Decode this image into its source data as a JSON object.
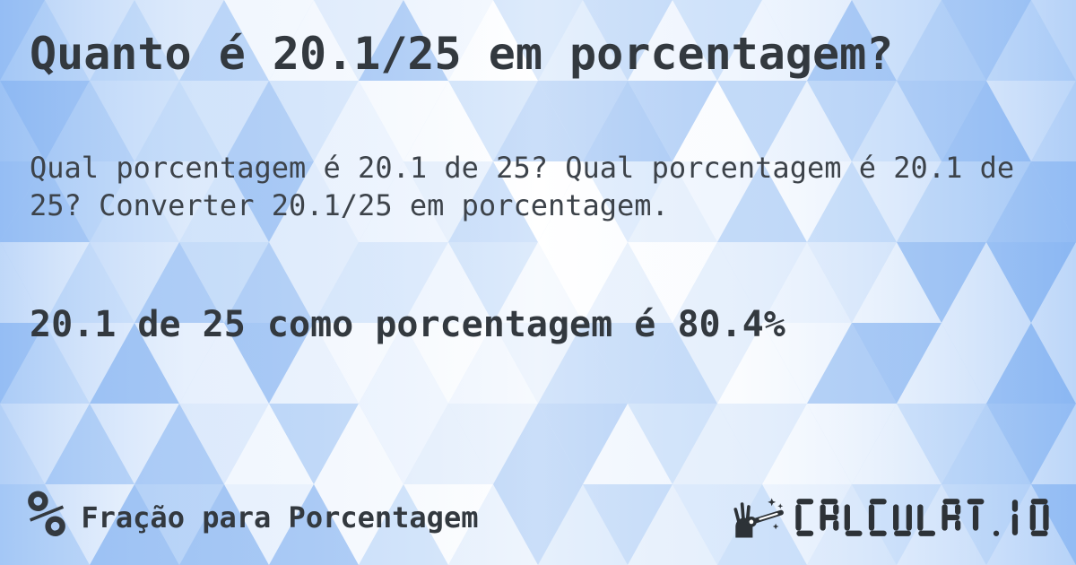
{
  "content": {
    "title": "Quanto é 20.1/25 em porcentagem?",
    "description": "Qual porcentagem é 20.1 de 25? Qual porcentagem é 20.1 de 25? Converter 20.1/25 em porcentagem.",
    "answer": "20.1 de 25 como porcentagem é 80.4%"
  },
  "footer": {
    "category_icon_glyph": "%",
    "category_label": "Fração para Porcentagem",
    "brand_name": "CALCULAT.IO"
  },
  "colors": {
    "text_primary": "#33393f",
    "text_secondary": "#3d434a",
    "logo": "#2d3237",
    "background_base": "#cfe2fa",
    "background_palette": [
      "#ffffff",
      "#f2f7fe",
      "#e5effc",
      "#d7e7fb",
      "#c8def9",
      "#b9d4f7",
      "#aacaf5",
      "#9cc1f3"
    ]
  }
}
